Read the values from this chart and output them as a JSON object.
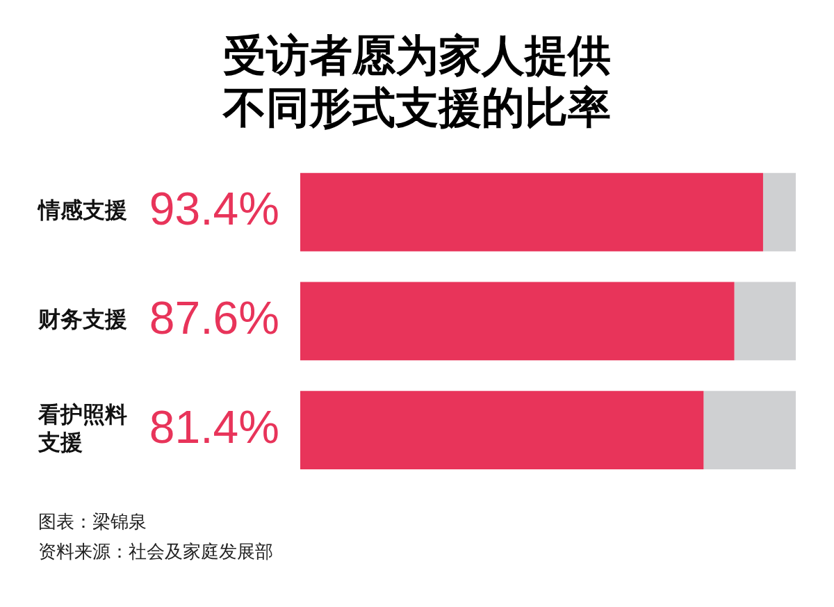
{
  "chart_data": {
    "type": "bar",
    "orientation": "horizontal",
    "stacked": true,
    "title": "受访者愿为家人提供不同形式支援的比率",
    "categories": [
      "情感支援",
      "财务支援",
      "看护照料支援"
    ],
    "series": [
      {
        "color": "#e8345a",
        "values": [
          93.4,
          87.6,
          81.4
        ],
        "value_labels": [
          "93.4%",
          "87.6%",
          "81.4%"
        ]
      },
      {
        "color": "#cfd0d2",
        "values": [
          6.6,
          12.4,
          18.6
        ]
      }
    ],
    "tick_labels": "y",
    "legend": false,
    "annotations": [
      "图表：梁锦泉",
      "资料来源：社会及家庭发展部"
    ]
  }
}
